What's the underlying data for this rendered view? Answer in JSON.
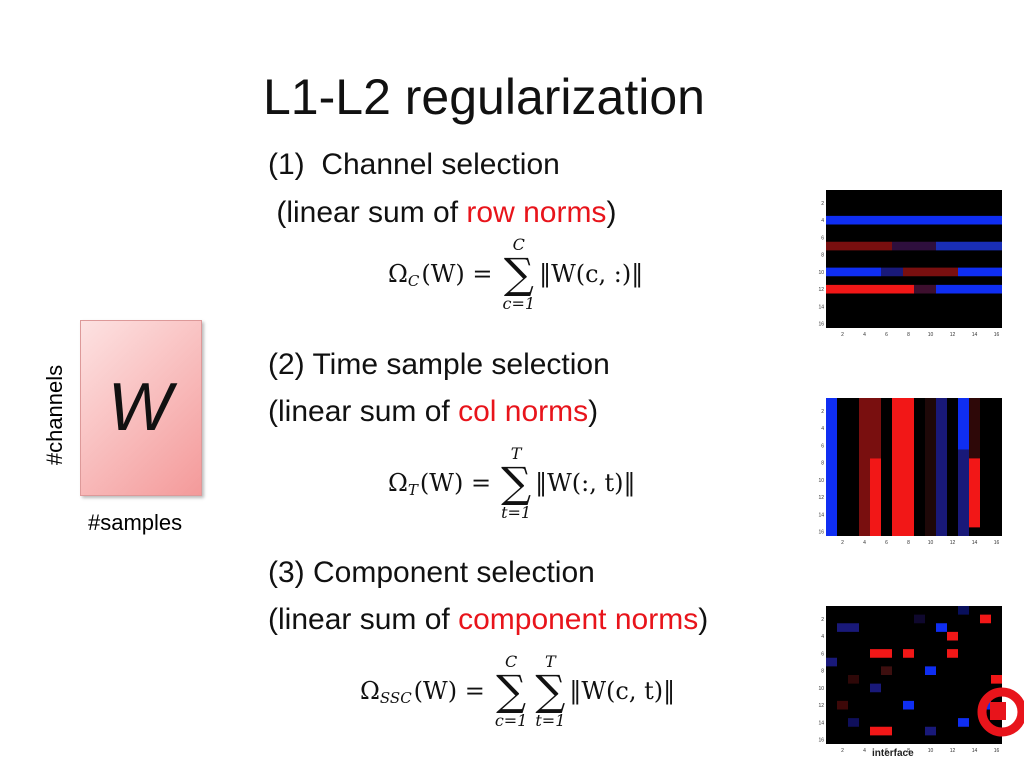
{
  "title": "L1-L2 regularization",
  "sections": [
    {
      "heading": "(1)  Channel selection",
      "desc_prefix": " (linear sum of ",
      "desc_highlight": "row norms",
      "desc_suffix": ")",
      "formula": {
        "lhs": "Ω",
        "lhs_sub": "C",
        "rel": "(W) =",
        "sums": [
          {
            "symbol": "∑",
            "upper": "C",
            "lower": "c=1"
          }
        ],
        "body": "‖W(c, :)‖"
      }
    },
    {
      "heading": "(2) Time sample selection",
      "desc_prefix": "(linear sum of ",
      "desc_highlight": "col norms",
      "desc_suffix": ")",
      "formula": {
        "lhs": "Ω",
        "lhs_sub": "T",
        "rel": "(W) =",
        "sums": [
          {
            "symbol": "∑",
            "upper": "T",
            "lower": "t=1"
          }
        ],
        "body": "‖W(:, t)‖"
      }
    },
    {
      "heading": "(3) Component selection",
      "desc_prefix": "(linear sum of ",
      "desc_highlight": "component norms",
      "desc_suffix": ")",
      "formula": {
        "lhs": "Ω",
        "lhs_sub": "SSC",
        "rel": "(W) =",
        "sums": [
          {
            "symbol": "∑",
            "upper": "C",
            "lower": "c=1"
          },
          {
            "symbol": "∑",
            "upper": "T",
            "lower": "t=1"
          }
        ],
        "body": "‖W(c, t)‖"
      }
    }
  ],
  "matrix": {
    "symbol": "W",
    "row_label": "#channels",
    "col_label": "#samples"
  },
  "heatmap_ticks": [
    2,
    4,
    6,
    8,
    10,
    12,
    14,
    16
  ],
  "logo_text": "interface"
}
